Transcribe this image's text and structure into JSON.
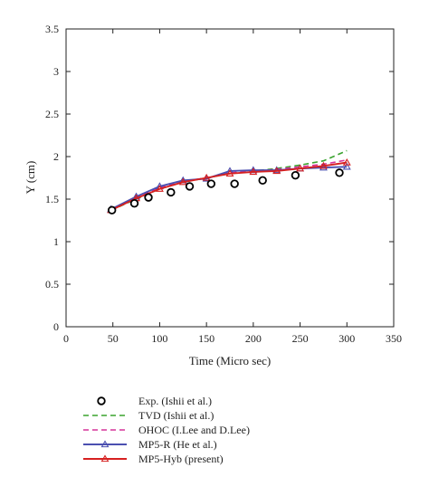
{
  "chart_data": {
    "type": "line",
    "xlabel": "Time (Micro sec)",
    "ylabel": "Y (cm)",
    "xlim": [
      0,
      350
    ],
    "ylim": [
      0,
      3.5
    ],
    "xticks": [
      0,
      50,
      100,
      150,
      200,
      250,
      300,
      350
    ],
    "yticks": [
      0,
      0.5,
      1,
      1.5,
      2,
      2.5,
      3,
      3.5
    ],
    "xtick_labels": [
      "0",
      "50",
      "100",
      "150",
      "200",
      "250",
      "300",
      "350"
    ],
    "ytick_labels": [
      "0",
      "0.5",
      "1",
      "1.5",
      "2",
      "2.5",
      "3",
      "3.5"
    ],
    "grid": false,
    "legend_position": "below",
    "series": [
      {
        "name": "Exp. (Ishii et al.)",
        "style": "markers",
        "marker": "circle",
        "color": "#000000",
        "x": [
          49,
          73,
          88,
          112,
          132,
          155,
          180,
          210,
          245,
          292
        ],
        "y": [
          1.37,
          1.45,
          1.52,
          1.58,
          1.65,
          1.68,
          1.68,
          1.72,
          1.78,
          1.81
        ]
      },
      {
        "name": "TVD (Ishii et al.)",
        "style": "dashed",
        "color": "#3aa32f",
        "x": [
          48,
          75,
          100,
          125,
          150,
          175,
          200,
          225,
          250,
          275,
          300
        ],
        "y": [
          1.37,
          1.5,
          1.62,
          1.7,
          1.75,
          1.8,
          1.83,
          1.86,
          1.9,
          1.95,
          2.07
        ]
      },
      {
        "name": "OHOC (I.Lee and D.Lee)",
        "style": "dashed",
        "color": "#d6339a",
        "x": [
          48,
          75,
          100,
          125,
          150,
          175,
          200,
          225,
          250,
          275,
          300
        ],
        "y": [
          1.37,
          1.52,
          1.63,
          1.71,
          1.75,
          1.81,
          1.83,
          1.85,
          1.88,
          1.91,
          1.96
        ]
      },
      {
        "name": "MP5-R (He et al.)",
        "style": "solid",
        "marker": "triangle",
        "color": "#4b4fb0",
        "x": [
          48,
          75,
          100,
          125,
          150,
          175,
          200,
          225,
          250,
          275,
          300
        ],
        "y": [
          1.38,
          1.53,
          1.65,
          1.72,
          1.74,
          1.83,
          1.84,
          1.84,
          1.86,
          1.87,
          1.88
        ]
      },
      {
        "name": "MP5-Hyb (present)",
        "style": "solid",
        "marker": "triangle",
        "color": "#d62020",
        "x": [
          48,
          75,
          100,
          125,
          150,
          175,
          200,
          225,
          250,
          275,
          300
        ],
        "y": [
          1.37,
          1.51,
          1.62,
          1.7,
          1.75,
          1.8,
          1.82,
          1.83,
          1.86,
          1.89,
          1.93
        ]
      }
    ]
  }
}
